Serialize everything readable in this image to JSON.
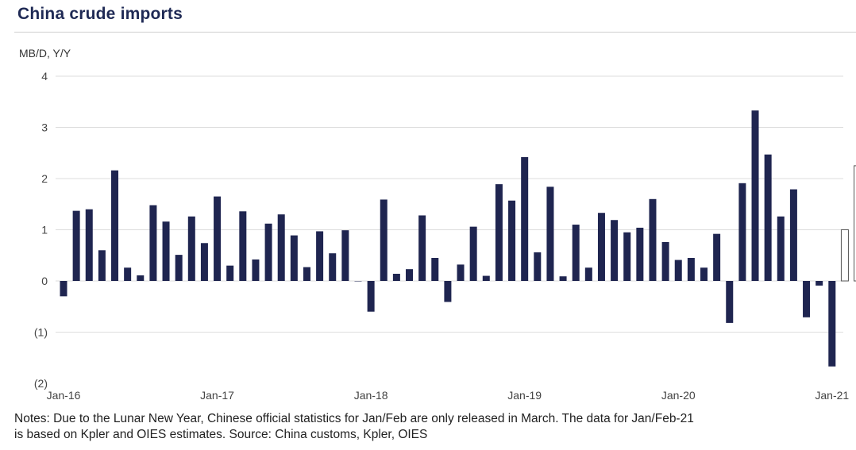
{
  "title": "China crude imports",
  "notes": {
    "line1": "Notes: Due to the Lunar New Year, Chinese official statistics for Jan/Feb are only released in March. The data for Jan/Feb-21",
    "line2": "is based on Kpler and OIES estimates. Source: China customs, Kpler, OIES"
  },
  "chart_data": {
    "type": "bar",
    "ylabel": "MB/D, Y/Y",
    "ylim": [
      -2,
      4
    ],
    "yticks": [
      4,
      3,
      2,
      1,
      0,
      -1,
      -2
    ],
    "ytick_labels": [
      "4",
      "3",
      "2",
      "1",
      "0",
      "(1)",
      "(2)"
    ],
    "grid": true,
    "x_labels": [
      "Jan-16",
      "Jan-17",
      "Jan-18",
      "Jan-19",
      "Jan-20",
      "Jan-21"
    ],
    "x_label_months": [
      0,
      12,
      24,
      36,
      48,
      60
    ],
    "colors": {
      "actual": "#1f2550",
      "estimate_fill": "#ffffff",
      "estimate_stroke": "#555555",
      "grid": "#dddddd"
    },
    "values": [
      -0.3,
      1.37,
      1.4,
      0.6,
      2.16,
      0.26,
      0.11,
      1.48,
      1.16,
      0.51,
      1.26,
      0.74,
      1.65,
      0.3,
      1.36,
      0.42,
      1.12,
      1.3,
      0.89,
      0.27,
      0.97,
      0.54,
      0.99,
      0.0,
      -0.6,
      1.59,
      0.14,
      0.23,
      1.28,
      0.45,
      -0.41,
      0.32,
      1.06,
      0.1,
      1.89,
      1.57,
      2.42,
      0.56,
      1.84,
      0.09,
      1.1,
      0.26,
      1.33,
      1.19,
      0.95,
      1.04,
      1.6,
      0.76,
      0.41,
      0.45,
      0.26,
      0.92,
      -0.82,
      1.91,
      3.33,
      2.47,
      1.26,
      1.79,
      -0.71,
      -0.09,
      -1.67,
      1.0,
      2.25
    ],
    "estimate_start_index": 61
  }
}
